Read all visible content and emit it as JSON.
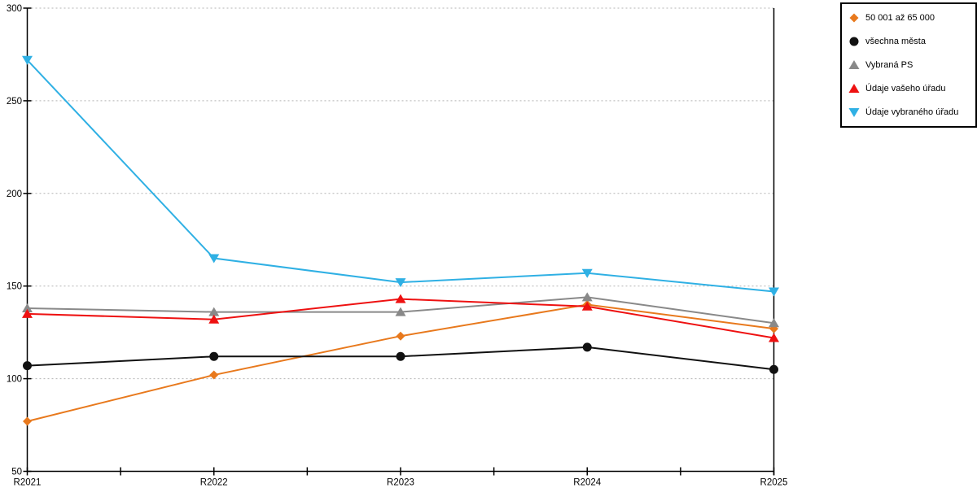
{
  "chart_data": {
    "type": "line",
    "title": "",
    "xlabel": "",
    "ylabel": "",
    "categories": [
      "R2021",
      "R2022",
      "R2023",
      "R2024",
      "R2025"
    ],
    "series": [
      {
        "name": "50 001 až 65 000",
        "color": "#E8791D",
        "marker": "diamond",
        "values": [
          77,
          102,
          123,
          140,
          127
        ]
      },
      {
        "name": "všechna města",
        "color": "#111111",
        "marker": "circle",
        "values": [
          107,
          112,
          112,
          117,
          105
        ]
      },
      {
        "name": "Vybraná PS",
        "color": "#898989",
        "marker": "triangle",
        "values": [
          138,
          136,
          136,
          144,
          130
        ]
      },
      {
        "name": "Údaje vašeho úřadu",
        "color": "#EE1111",
        "marker": "triangle",
        "values": [
          135,
          132,
          143,
          139,
          122
        ]
      },
      {
        "name": "Údaje vybraného úřadu",
        "color": "#2FB0E4",
        "marker": "triangle-down",
        "values": [
          272,
          165,
          152,
          157,
          147
        ]
      }
    ],
    "ylim": [
      50,
      300
    ],
    "yticks": [
      50,
      100,
      150,
      200,
      250,
      300
    ],
    "grid": true,
    "grid_style": "dotted",
    "grid_color": "#b3b3b3",
    "axis_color": "#000000",
    "legend_position": "top-right"
  }
}
